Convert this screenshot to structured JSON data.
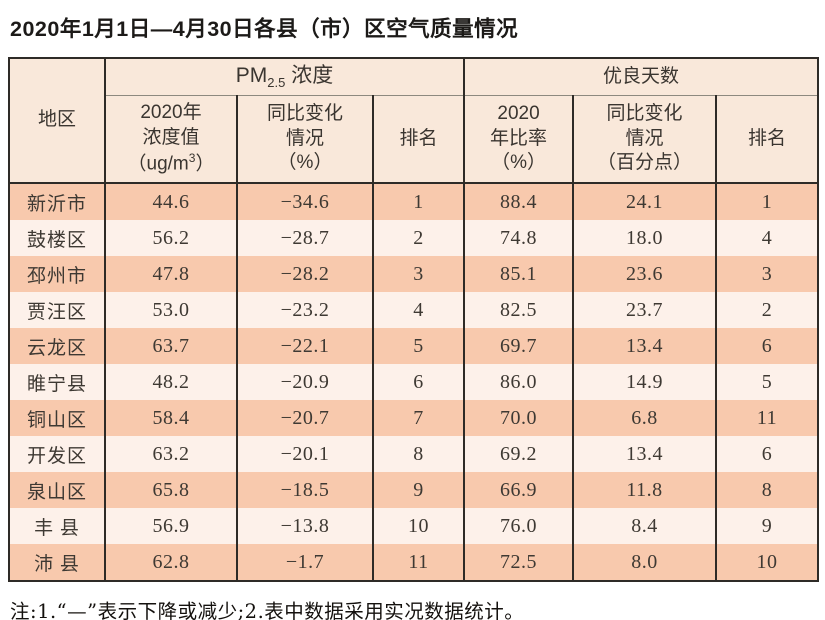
{
  "page": {
    "title": "2020年1月1日—4月30日各县（市）区空气质量情况",
    "footnote": "注:1.“—”表示下降或减少;2.表中数据采用实况数据统计。"
  },
  "colors": {
    "row_odd_bg": "#f8c9ad",
    "row_even_bg": "#fdf1ea",
    "header_bg": "#f9e8da",
    "table_border": "#2e2b27",
    "text": "#3e3933"
  },
  "table": {
    "headers": {
      "region": "地区",
      "group_pm": {
        "main": "PM",
        "sub": "2.5",
        "rest": " 浓度"
      },
      "group_good": "优良天数",
      "pm_value": {
        "line1": "2020年",
        "line2": "浓度值",
        "unit_pre": "（ug/m",
        "unit_sup": "3",
        "unit_post": "）"
      },
      "pm_change": {
        "line1": "同比变化",
        "line2": "情况",
        "line3": "（%）"
      },
      "pm_rank": "排名",
      "good_ratio": {
        "line1": "2020",
        "line2": "年比率",
        "line3": "（%）"
      },
      "good_change": {
        "line1": "同比变化",
        "line2": "情况",
        "line3": "（百分点）"
      },
      "good_rank": "排名"
    },
    "rows": [
      {
        "region": "新沂市",
        "pm_value": "44.6",
        "pm_change": "−34.6",
        "pm_rank": "1",
        "good_ratio": "88.4",
        "good_change": "24.1",
        "good_rank": "1"
      },
      {
        "region": "鼓楼区",
        "pm_value": "56.2",
        "pm_change": "−28.7",
        "pm_rank": "2",
        "good_ratio": "74.8",
        "good_change": "18.0",
        "good_rank": "4"
      },
      {
        "region": "邳州市",
        "pm_value": "47.8",
        "pm_change": "−28.2",
        "pm_rank": "3",
        "good_ratio": "85.1",
        "good_change": "23.6",
        "good_rank": "3"
      },
      {
        "region": "贾汪区",
        "pm_value": "53.0",
        "pm_change": "−23.2",
        "pm_rank": "4",
        "good_ratio": "82.5",
        "good_change": "23.7",
        "good_rank": "2"
      },
      {
        "region": "云龙区",
        "pm_value": "63.7",
        "pm_change": "−22.1",
        "pm_rank": "5",
        "good_ratio": "69.7",
        "good_change": "13.4",
        "good_rank": "6"
      },
      {
        "region": "睢宁县",
        "pm_value": "48.2",
        "pm_change": "−20.9",
        "pm_rank": "6",
        "good_ratio": "86.0",
        "good_change": "14.9",
        "good_rank": "5"
      },
      {
        "region": "铜山区",
        "pm_value": "58.4",
        "pm_change": "−20.7",
        "pm_rank": "7",
        "good_ratio": "70.0",
        "good_change": "6.8",
        "good_rank": "11"
      },
      {
        "region": "开发区",
        "pm_value": "63.2",
        "pm_change": "−20.1",
        "pm_rank": "8",
        "good_ratio": "69.2",
        "good_change": "13.4",
        "good_rank": "6"
      },
      {
        "region": "泉山区",
        "pm_value": "65.8",
        "pm_change": "−18.5",
        "pm_rank": "9",
        "good_ratio": "66.9",
        "good_change": "11.8",
        "good_rank": "8"
      },
      {
        "region": "丰 县",
        "pm_value": "56.9",
        "pm_change": "−13.8",
        "pm_rank": "10",
        "good_ratio": "76.0",
        "good_change": "8.4",
        "good_rank": "9"
      },
      {
        "region": "沛 县",
        "pm_value": "62.8",
        "pm_change": "−1.7",
        "pm_rank": "11",
        "good_ratio": "72.5",
        "good_change": "8.0",
        "good_rank": "10"
      }
    ]
  }
}
